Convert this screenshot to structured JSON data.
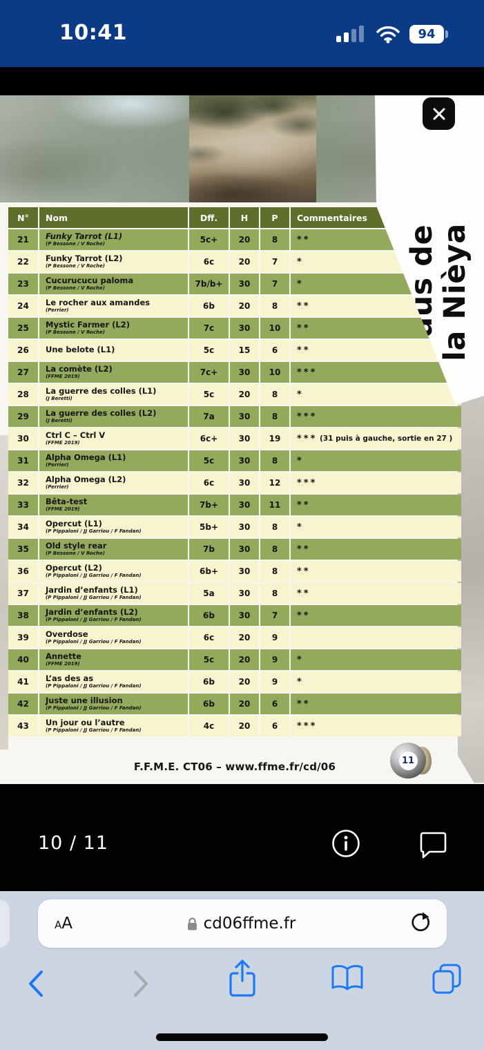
{
  "status_bar": {
    "time": "10:41",
    "battery_percent": "94"
  },
  "pdf": {
    "title_line1": "Baus de",
    "title_line2": "la Nièya",
    "footer": "F.F.M.E. CT06 – www.ffme.fr/cd/06",
    "badge_number": "11",
    "table": {
      "headers": [
        "N°",
        "Nom",
        "Dff.",
        "H",
        "P",
        "Commentaires"
      ],
      "rows": [
        {
          "num": "21",
          "name": "Funky Tarrot (L1)",
          "authors": "(P Bessone / V Roche)",
          "dff": "5c+",
          "h": "20",
          "p": "8",
          "comment": "**",
          "shade": "green",
          "italic": true
        },
        {
          "num": "22",
          "name": "Funky Tarrot (L2)",
          "authors": "(P Bessone / V Roche)",
          "dff": "6c",
          "h": "20",
          "p": "7",
          "comment": "*",
          "shade": "cream",
          "italic": false
        },
        {
          "num": "23",
          "name": "Cucurucucu paloma",
          "authors": "(P Bessone / V Roche)",
          "dff": "7b/b+",
          "h": "30",
          "p": "7",
          "comment": "*",
          "shade": "green",
          "italic": false
        },
        {
          "num": "24",
          "name": "Le rocher aux amandes",
          "authors": "(Perrier)",
          "dff": "6b",
          "h": "20",
          "p": "8",
          "comment": "**",
          "shade": "cream",
          "italic": false
        },
        {
          "num": "25",
          "name": "Mystic Farmer (L2)",
          "authors": "(P Bessone / V Roche)",
          "dff": "7c",
          "h": "30",
          "p": "10",
          "comment": "**",
          "shade": "green",
          "italic": false
        },
        {
          "num": "26",
          "name": "Une belote (L1)",
          "authors": "",
          "dff": "5c",
          "h": "15",
          "p": "6",
          "comment": "**",
          "shade": "cream",
          "italic": false
        },
        {
          "num": "27",
          "name": "La comète  (L2)",
          "authors": "(FFME 2019)",
          "dff": "7c+",
          "h": "30",
          "p": "10",
          "comment": "***",
          "shade": "green",
          "italic": false
        },
        {
          "num": "28",
          "name": "La guerre des colles (L1)",
          "authors": "(J Beretti)",
          "dff": "5c",
          "h": "20",
          "p": "8",
          "comment": "*",
          "shade": "cream",
          "italic": false
        },
        {
          "num": "29",
          "name": "La guerre des colles (L2)",
          "authors": "(J Beretti)",
          "dff": "7a",
          "h": "30",
          "p": "8",
          "comment": "***",
          "shade": "green",
          "italic": false
        },
        {
          "num": "30",
          "name": "Ctrl C – Ctrl V",
          "authors": "(FFME 2019)",
          "dff": "6c+",
          "h": "30",
          "p": "19",
          "comment": "*** (31 puis à gauche, sortie en 27 )",
          "shade": "cream",
          "italic": false
        },
        {
          "num": "31",
          "name": "Alpha Omega (L1)",
          "authors": "(Perrier)",
          "dff": "5c",
          "h": "30",
          "p": "8",
          "comment": "*",
          "shade": "green",
          "italic": false
        },
        {
          "num": "32",
          "name": "Alpha Omega (L2)",
          "authors": "(Perrier)",
          "dff": "6c",
          "h": "30",
          "p": "12",
          "comment": "***",
          "shade": "cream",
          "italic": false
        },
        {
          "num": "33",
          "name": "Bêta-test",
          "authors": "(FFME 2019)",
          "dff": "7b+",
          "h": "30",
          "p": "11",
          "comment": "**",
          "shade": "green",
          "italic": false
        },
        {
          "num": "34",
          "name": "Opercut (L1)",
          "authors": "(P Pippaloni / JJ Garriou / F Fandan)",
          "dff": "5b+",
          "h": "30",
          "p": "8",
          "comment": "*",
          "shade": "cream",
          "italic": false
        },
        {
          "num": "35",
          "name": "Old style rear",
          "authors": "(P Bessone / V Roche)",
          "dff": "7b",
          "h": "30",
          "p": "8",
          "comment": "**",
          "shade": "green",
          "italic": false
        },
        {
          "num": "36",
          "name": "Opercut (L2)",
          "authors": "(P Pippaloni / JJ Garriou / F Fandan)",
          "dff": "6b+",
          "h": "30",
          "p": "8",
          "comment": "**",
          "shade": "cream",
          "italic": false
        },
        {
          "num": "37",
          "name": "Jardin d’enfants (L1)",
          "authors": "(P Pippaloni / JJ Garriou / F Fandan)",
          "dff": "5a",
          "h": "30",
          "p": "8",
          "comment": "**",
          "shade": "cream",
          "italic": false
        },
        {
          "num": "38",
          "name": "Jardin d’enfants (L2)",
          "authors": "(P Pippaloni / JJ Garriou / F Fandan)",
          "dff": "6b",
          "h": "30",
          "p": "7",
          "comment": "**",
          "shade": "green",
          "italic": false
        },
        {
          "num": "39",
          "name": "Overdose",
          "authors": "(P Pippaloni / JJ Garriou / F Fandan)",
          "dff": "6c",
          "h": "20",
          "p": "9",
          "comment": "",
          "shade": "cream",
          "italic": false
        },
        {
          "num": "40",
          "name": "Annette",
          "authors": "(FFME 2019)",
          "dff": "5c",
          "h": "20",
          "p": "9",
          "comment": "*",
          "shade": "green",
          "italic": false
        },
        {
          "num": "41",
          "name": "L’as des as",
          "authors": "(P Pippaloni / JJ Garriou / F Fandan)",
          "dff": "6b",
          "h": "20",
          "p": "9",
          "comment": "*",
          "shade": "cream",
          "italic": false
        },
        {
          "num": "42",
          "name": "Juste une illusion",
          "authors": "(P Pippaloni / JJ Garriou / F Fandan)",
          "dff": "6b",
          "h": "20",
          "p": "6",
          "comment": "**",
          "shade": "green",
          "italic": false
        },
        {
          "num": "43",
          "name": "Un jour ou l’autre",
          "authors": "(P Pippaloni / JJ Garriou / F Fandan)",
          "dff": "4c",
          "h": "20",
          "p": "6",
          "comment": "***",
          "shade": "cream",
          "italic": false
        }
      ]
    }
  },
  "viewer": {
    "page_indicator": "10 / 11"
  },
  "browser": {
    "reader_small": "A",
    "reader_large": "A",
    "url": "cd06ffme.fr"
  },
  "colors": {
    "status_blue": "#0b3a87",
    "header_green": "#5d6f2b",
    "row_green": "#93aa5d",
    "row_cream": "#f7f4cf",
    "safari_blue": "#1b79f7"
  }
}
